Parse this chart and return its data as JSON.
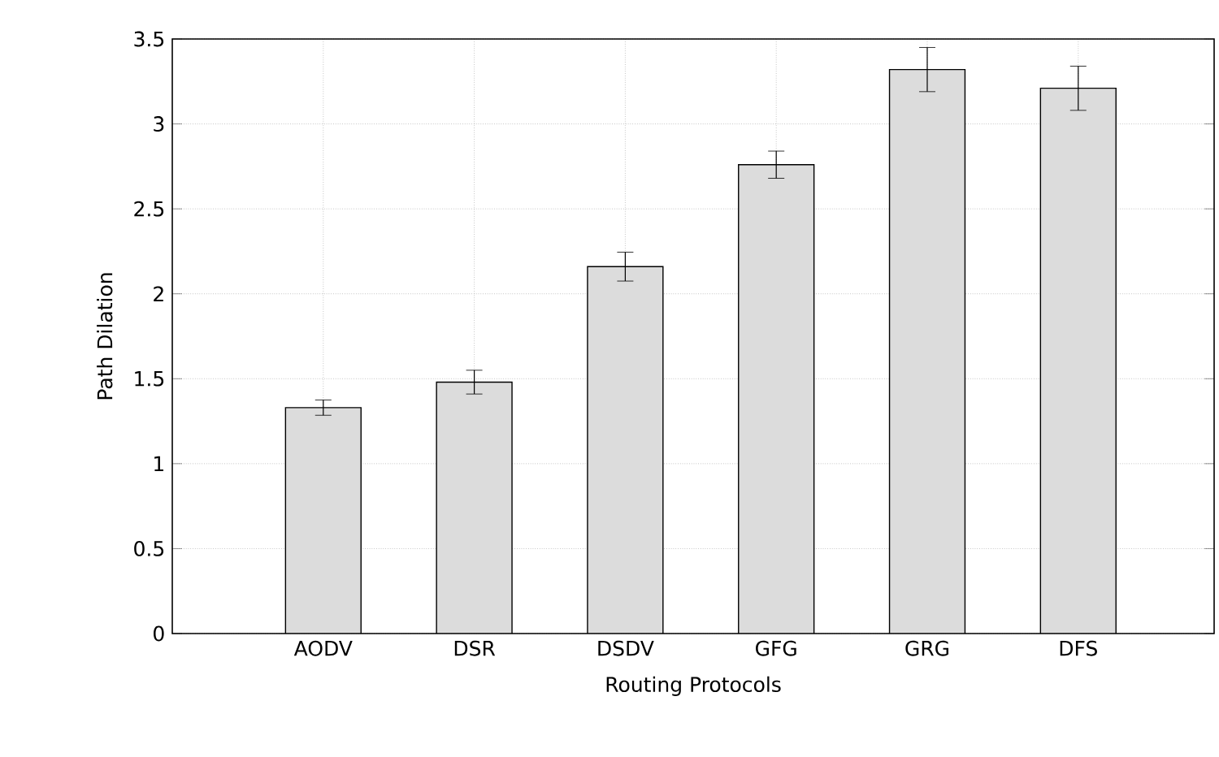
{
  "chart_data": {
    "type": "bar",
    "xlabel": "Routing Protocols",
    "ylabel": "Path Dilation",
    "categories": [
      "AODV",
      "DSR",
      "DSDV",
      "GFG",
      "GRG",
      "DFS"
    ],
    "values": [
      1.33,
      1.48,
      2.16,
      2.76,
      3.32,
      3.21
    ],
    "errors": [
      0.045,
      0.07,
      0.085,
      0.08,
      0.13,
      0.13
    ],
    "color": "#dcdcdc",
    "ylim": [
      0,
      3.5
    ],
    "yticks": [
      0,
      0.5,
      1,
      1.5,
      2,
      2.5,
      3,
      3.5
    ],
    "grid": true
  }
}
